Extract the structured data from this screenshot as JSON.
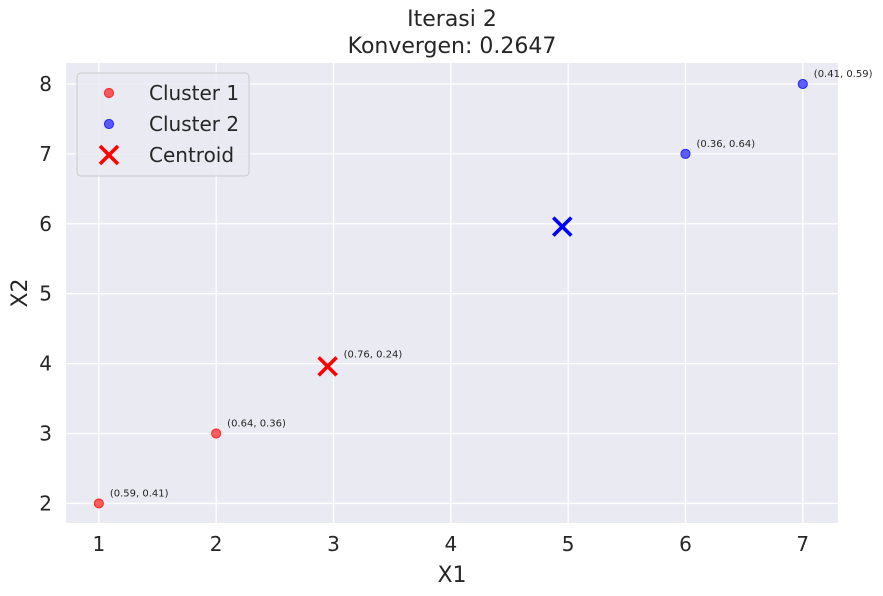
{
  "chart_data": {
    "type": "scatter",
    "title_lines": [
      "Iterasi 2",
      "Konvergen: 0.2647"
    ],
    "xlabel": "X1",
    "ylabel": "X2",
    "xlim": [
      0.72,
      7.3
    ],
    "ylim": [
      1.72,
      8.3
    ],
    "xticks": [
      "1",
      "2",
      "3",
      "4",
      "5",
      "6",
      "7"
    ],
    "yticks": [
      "2",
      "3",
      "4",
      "5",
      "6",
      "7",
      "8"
    ],
    "grid": true,
    "legend_position": "top-left",
    "series": [
      {
        "name": "Cluster 1",
        "color": "#ff0000",
        "marker": "circle",
        "points": [
          {
            "x": 1,
            "y": 2,
            "label": "(0.59, 0.41)"
          },
          {
            "x": 2,
            "y": 3,
            "label": "(0.64, 0.36)"
          }
        ]
      },
      {
        "name": "Cluster 2",
        "color": "#0000ff",
        "marker": "circle",
        "points": [
          {
            "x": 6,
            "y": 7,
            "label": "(0.36, 0.64)"
          },
          {
            "x": 7,
            "y": 8,
            "label": "(0.41, 0.59)"
          }
        ]
      }
    ],
    "centroids": {
      "name": "Centroid",
      "legend_color": "#ff0000",
      "points": [
        {
          "x": 2.95,
          "y": 3.96,
          "color": "#ff0000",
          "label": "(0.76, 0.24)"
        },
        {
          "x": 4.95,
          "y": 5.96,
          "color": "#0000ff"
        }
      ]
    }
  }
}
